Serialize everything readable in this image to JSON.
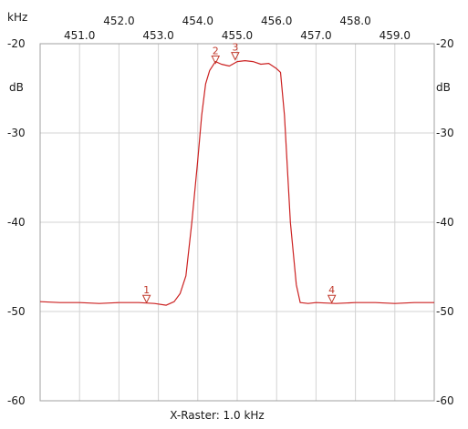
{
  "chart_data": {
    "type": "line",
    "xlabel": "kHz",
    "ylabel": "dB",
    "footer": "X-Raster: 1.0 kHz",
    "xlim": [
      450.0,
      460.0
    ],
    "ylim": [
      -60,
      -20
    ],
    "x_ticks_top": [
      "452.0",
      "454.0",
      "456.0",
      "458.0"
    ],
    "x_ticks_bottom": [
      "451.0",
      "453.0",
      "455.0",
      "457.0",
      "459.0"
    ],
    "x_ticks_top_values": [
      452.0,
      454.0,
      456.0,
      458.0
    ],
    "x_ticks_bottom_values": [
      451.0,
      453.0,
      455.0,
      457.0,
      459.0
    ],
    "y_ticks": [
      "-20",
      "-30",
      "-40",
      "-50",
      "-60"
    ],
    "y_ticks_values": [
      -20,
      -30,
      -40,
      -50,
      -60
    ],
    "grid": true,
    "series": [
      {
        "color": "#cc2222",
        "x": [
          450.0,
          450.5,
          451.0,
          451.5,
          452.0,
          452.5,
          452.9,
          453.2,
          453.4,
          453.55,
          453.7,
          453.85,
          454.0,
          454.1,
          454.2,
          454.3,
          454.45,
          454.6,
          454.8,
          455.0,
          455.2,
          455.4,
          455.6,
          455.8,
          456.0,
          456.1,
          456.2,
          456.35,
          456.5,
          456.6,
          456.8,
          457.0,
          457.5,
          458.0,
          458.5,
          459.0,
          459.5,
          460.0
        ],
        "y": [
          -48.9,
          -49.0,
          -49.0,
          -49.1,
          -49.0,
          -49.0,
          -49.1,
          -49.3,
          -48.9,
          -48.0,
          -46.0,
          -40.0,
          -33.0,
          -28.0,
          -24.5,
          -23.0,
          -22.0,
          -22.3,
          -22.5,
          -22.0,
          -21.9,
          -22.0,
          -22.3,
          -22.2,
          -22.8,
          -23.2,
          -28.0,
          -40.0,
          -47.0,
          -49.0,
          -49.1,
          -49.0,
          -49.1,
          -49.0,
          -49.0,
          -49.1,
          -49.0,
          -49.0
        ]
      }
    ],
    "markers": [
      {
        "label": "1",
        "x": 452.7,
        "y": -49.0
      },
      {
        "label": "2",
        "x": 454.45,
        "y": -22.2
      },
      {
        "label": "3",
        "x": 454.95,
        "y": -21.8
      },
      {
        "label": "4",
        "x": 457.4,
        "y": -49.0
      }
    ]
  }
}
